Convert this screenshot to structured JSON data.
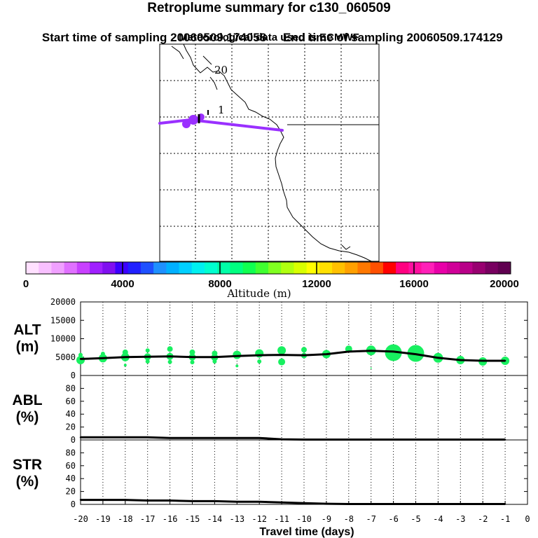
{
  "header": {
    "title": "Retroplume summary for c130_060509",
    "start_label": "Start time of sampling 20060509.174058",
    "end_label": "End time of sampling 20060509.174129",
    "met_label": "Meteorological data used is ECMWF"
  },
  "map": {
    "day_labels": [
      "20",
      "1"
    ],
    "plume_color": "#9a30ff",
    "coast_color": "#000000"
  },
  "colorbar": {
    "ticks": [
      "0",
      "4000",
      "8000",
      "12000",
      "16000",
      "20000"
    ],
    "label": "Altitude  (m)",
    "colors": [
      "#ffe0ff",
      "#f8c0ff",
      "#f0a0ff",
      "#e070ff",
      "#c840ff",
      "#a020ff",
      "#8010f0",
      "#3c00ff",
      "#2020ff",
      "#1e50ff",
      "#1e90ff",
      "#00b0ff",
      "#00d0ff",
      "#00f0f0",
      "#00ffd0",
      "#00ffa8",
      "#00ff80",
      "#10ff50",
      "#40ff30",
      "#80ff20",
      "#b0ff10",
      "#d8ff00",
      "#ffff00",
      "#ffe000",
      "#ffc000",
      "#ffa000",
      "#ff7800",
      "#ff5000",
      "#ff0000",
      "#ff0080",
      "#ff10a0",
      "#ff20b8",
      "#e800a8",
      "#d00098",
      "#b80088",
      "#980070",
      "#780060",
      "#600050"
    ]
  },
  "chart_data": [
    {
      "type": "line",
      "name": "ALT",
      "ylabel": "ALT\n(m)",
      "ylim": [
        0,
        20000
      ],
      "yticks": [
        "20000",
        "15000",
        "10000",
        "5000",
        "0"
      ],
      "x": [
        -20,
        -19,
        -18,
        -17,
        -16,
        -15,
        -14,
        -13,
        -12,
        -11,
        -10,
        -9,
        -8,
        -7,
        -6,
        -5,
        -4,
        -3,
        -2,
        -1
      ],
      "values": [
        4500,
        4700,
        5000,
        5100,
        5200,
        5000,
        5000,
        5300,
        5500,
        5600,
        5500,
        5800,
        6500,
        6700,
        6500,
        5800,
        4800,
        4200,
        4000,
        4000
      ],
      "bubbles": [
        {
          "x": -20,
          "y": 4200,
          "r": 6
        },
        {
          "x": -20,
          "y": 5600,
          "r": 3
        },
        {
          "x": -19,
          "y": 4700,
          "r": 6
        },
        {
          "x": -19,
          "y": 5900,
          "r": 3
        },
        {
          "x": -18,
          "y": 5000,
          "r": 6
        },
        {
          "x": -18,
          "y": 6300,
          "r": 4
        },
        {
          "x": -18,
          "y": 2800,
          "r": 2
        },
        {
          "x": -17,
          "y": 5100,
          "r": 5
        },
        {
          "x": -17,
          "y": 6800,
          "r": 3
        },
        {
          "x": -17,
          "y": 3800,
          "r": 3
        },
        {
          "x": -16,
          "y": 5200,
          "r": 5
        },
        {
          "x": -16,
          "y": 7200,
          "r": 4
        },
        {
          "x": -16,
          "y": 3700,
          "r": 3
        },
        {
          "x": -15,
          "y": 5000,
          "r": 5
        },
        {
          "x": -15,
          "y": 6300,
          "r": 4
        },
        {
          "x": -15,
          "y": 3600,
          "r": 3
        },
        {
          "x": -14,
          "y": 4900,
          "r": 5
        },
        {
          "x": -14,
          "y": 6000,
          "r": 4
        },
        {
          "x": -14,
          "y": 3800,
          "r": 3
        },
        {
          "x": -13,
          "y": 5600,
          "r": 6
        },
        {
          "x": -13,
          "y": 2600,
          "r": 2
        },
        {
          "x": -12,
          "y": 6000,
          "r": 6
        },
        {
          "x": -12,
          "y": 3800,
          "r": 3
        },
        {
          "x": -11,
          "y": 6800,
          "r": 6
        },
        {
          "x": -11,
          "y": 3700,
          "r": 5
        },
        {
          "x": -10,
          "y": 7000,
          "r": 4
        },
        {
          "x": -10,
          "y": 5400,
          "r": 4
        },
        {
          "x": -9,
          "y": 5800,
          "r": 6
        },
        {
          "x": -8,
          "y": 7200,
          "r": 5
        },
        {
          "x": -7,
          "y": 6800,
          "r": 7
        },
        {
          "x": -7,
          "y": 2000,
          "r": 1
        },
        {
          "x": -6,
          "y": 6200,
          "r": 12
        },
        {
          "x": -5,
          "y": 6000,
          "r": 12
        },
        {
          "x": -4,
          "y": 4800,
          "r": 7
        },
        {
          "x": -3,
          "y": 4200,
          "r": 6
        },
        {
          "x": -2,
          "y": 3800,
          "r": 6
        },
        {
          "x": -1,
          "y": 4000,
          "r": 6
        }
      ]
    },
    {
      "type": "line",
      "name": "ABL",
      "ylabel": "ABL\n(%)",
      "ylim": [
        0,
        100
      ],
      "yticks": [
        "80",
        "60",
        "40",
        "20",
        "0"
      ],
      "x": [
        -20,
        -19,
        -18,
        -17,
        -16,
        -15,
        -14,
        -13,
        -12,
        -11,
        -10,
        -9,
        -8,
        -7,
        -6,
        -5,
        -4,
        -3,
        -2,
        -1
      ],
      "values": [
        4,
        4,
        4,
        4,
        3,
        3,
        3,
        3,
        3,
        1,
        0.5,
        0.5,
        0.5,
        0.5,
        0.5,
        0.5,
        0.5,
        0.5,
        0.5,
        0.5
      ]
    },
    {
      "type": "line",
      "name": "STR",
      "ylabel": "STR\n(%)",
      "ylim": [
        0,
        100
      ],
      "yticks": [
        "80",
        "60",
        "40",
        "20",
        "0"
      ],
      "x": [
        -20,
        -19,
        -18,
        -17,
        -16,
        -15,
        -14,
        -13,
        -12,
        -11,
        -10,
        -9,
        -8,
        -7,
        -6,
        -5,
        -4,
        -3,
        -2,
        -1
      ],
      "values": [
        7,
        7,
        7,
        6,
        6,
        5,
        5,
        4,
        4,
        3,
        2,
        1,
        0.5,
        0.5,
        0.5,
        0.5,
        0.5,
        0.5,
        0.5,
        0.5
      ],
      "xlabel": "Travel time (days)",
      "xticks": [
        "-20",
        "-19",
        "-18",
        "-17",
        "-16",
        "-15",
        "-14",
        "-13",
        "-12",
        "-11",
        "-10",
        "-9",
        "-8",
        "-7",
        "-6",
        "-5",
        "-4",
        "-3",
        "-2",
        "-1",
        "0"
      ]
    }
  ]
}
